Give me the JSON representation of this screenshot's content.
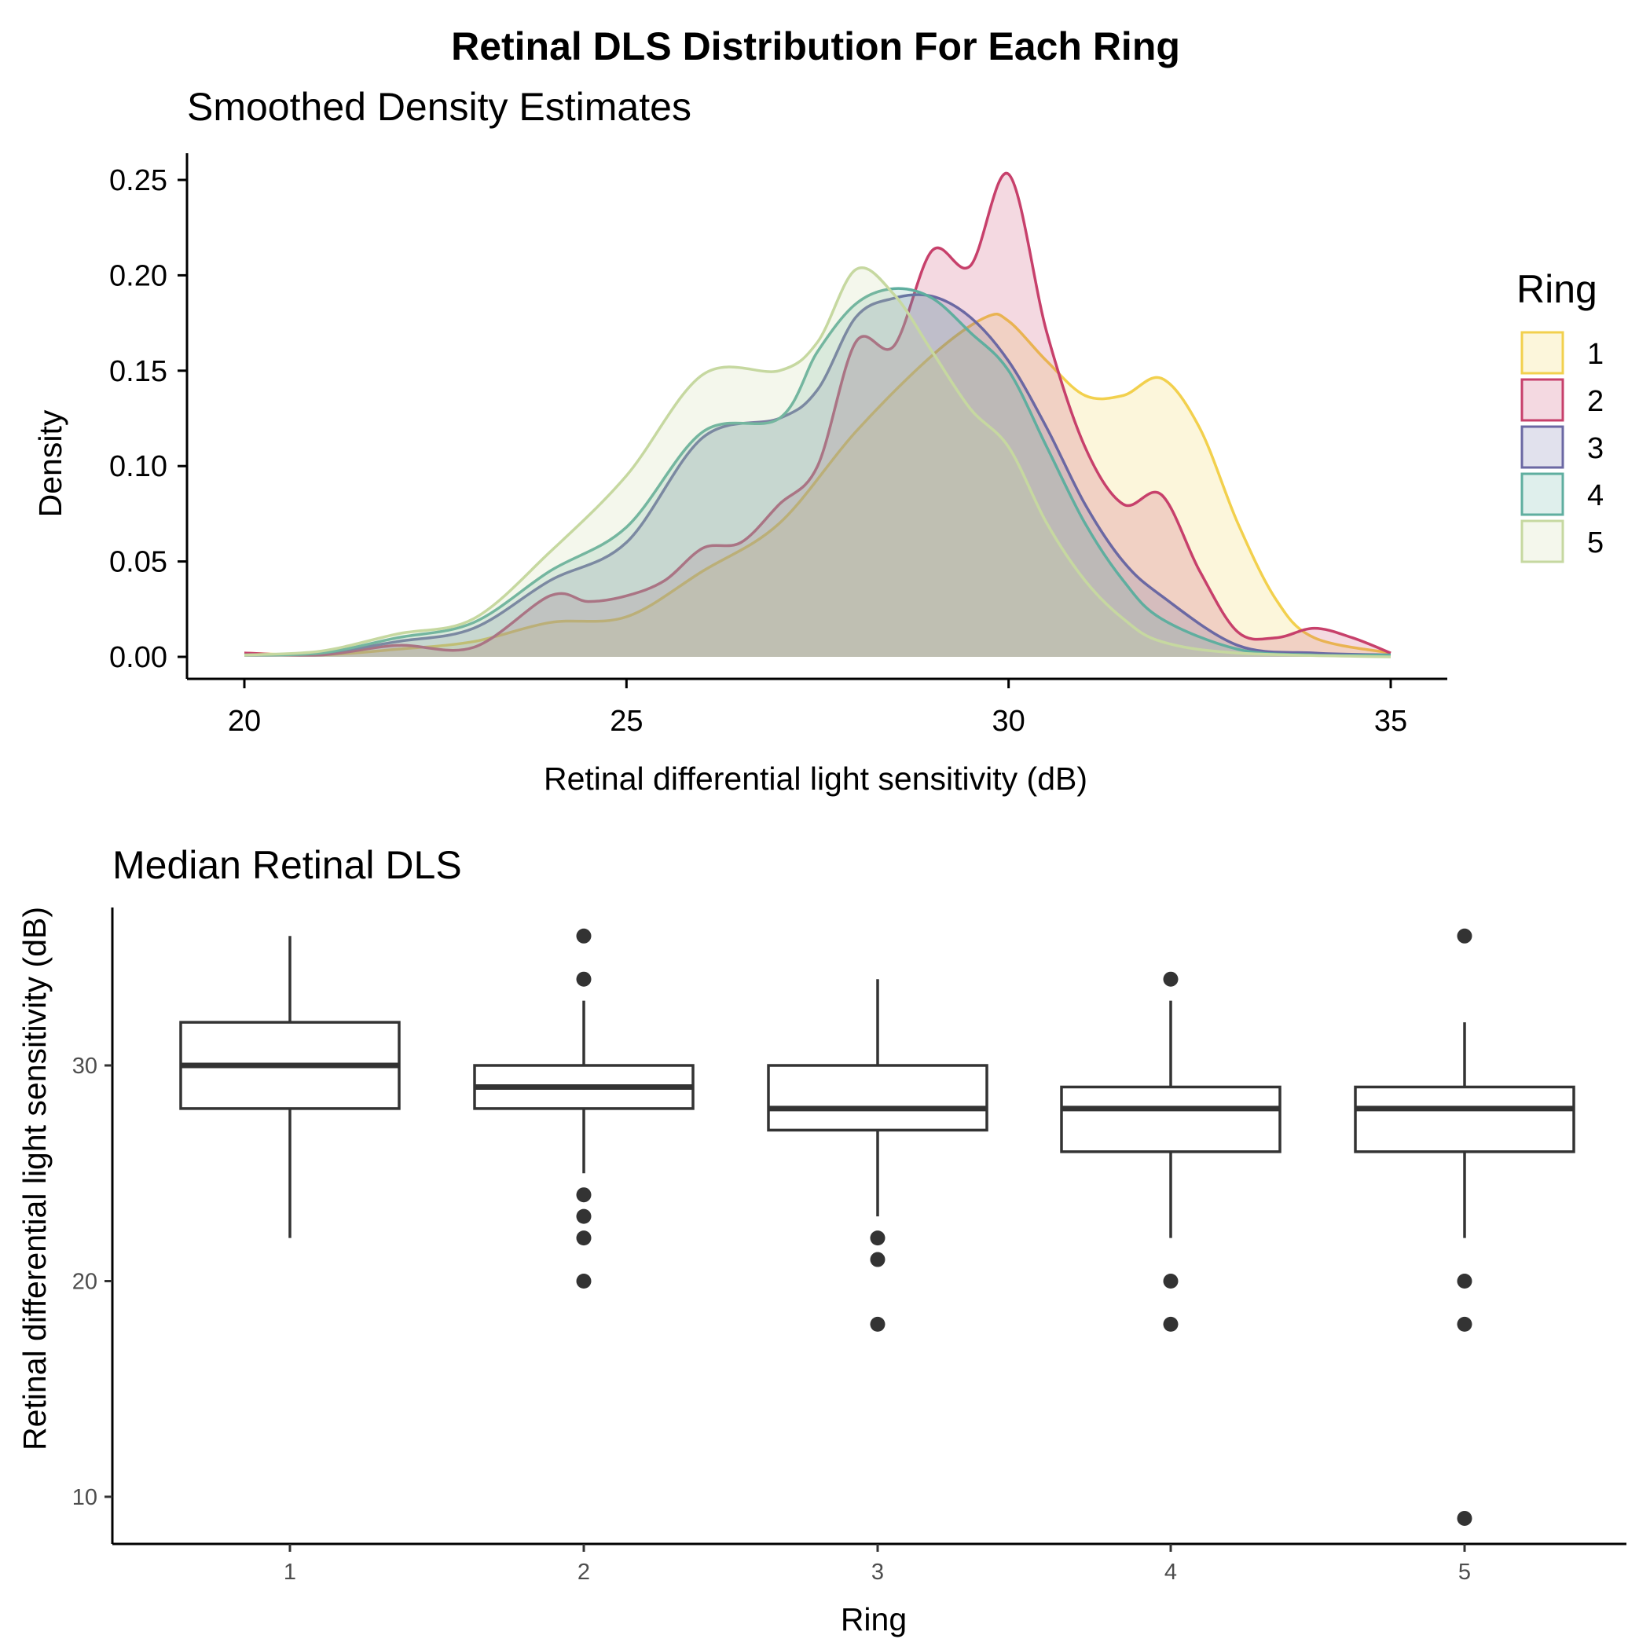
{
  "title": "Retinal DLS Distribution For Each Ring",
  "colors": {
    "ring1": "#F2D04D",
    "ring2": "#C7406B",
    "ring3": "#6B68A3",
    "ring4": "#5FAE9F",
    "ring5": "#C6D8A0",
    "box": "#333333"
  },
  "chart_data": [
    {
      "type": "area",
      "subtitle": "Smoothed Density Estimates",
      "xlabel": "Retinal differential light sensitivity (dB)",
      "ylabel": "Density",
      "xlim": [
        20,
        35
      ],
      "ylim": [
        0,
        0.26
      ],
      "xticks": [
        "20",
        "25",
        "30",
        "35"
      ],
      "yticks": [
        "0.00",
        "0.05",
        "0.10",
        "0.15",
        "0.20",
        "0.25"
      ],
      "grid": false,
      "legend": {
        "title": "Ring",
        "position": "right",
        "entries": [
          "1",
          "2",
          "3",
          "4",
          "5"
        ]
      },
      "series": [
        {
          "name": "1",
          "points": [
            [
              20,
              0.002
            ],
            [
              21,
              0.001
            ],
            [
              22,
              0.004
            ],
            [
              23,
              0.008
            ],
            [
              24,
              0.018
            ],
            [
              25,
              0.021
            ],
            [
              26,
              0.045
            ],
            [
              27,
              0.07
            ],
            [
              28,
              0.118
            ],
            [
              29,
              0.158
            ],
            [
              29.7,
              0.178
            ],
            [
              30,
              0.176
            ],
            [
              30.5,
              0.155
            ],
            [
              31,
              0.137
            ],
            [
              31.5,
              0.137
            ],
            [
              32,
              0.146
            ],
            [
              32.5,
              0.12
            ],
            [
              33,
              0.07
            ],
            [
              33.5,
              0.03
            ],
            [
              34,
              0.01
            ],
            [
              35,
              0.002
            ]
          ]
        },
        {
          "name": "2",
          "points": [
            [
              20,
              0.002
            ],
            [
              21,
              0.001
            ],
            [
              22,
              0.006
            ],
            [
              23,
              0.005
            ],
            [
              24,
              0.032
            ],
            [
              24.5,
              0.029
            ],
            [
              25,
              0.032
            ],
            [
              25.5,
              0.04
            ],
            [
              26,
              0.057
            ],
            [
              26.5,
              0.06
            ],
            [
              27,
              0.08
            ],
            [
              27.5,
              0.1
            ],
            [
              28,
              0.165
            ],
            [
              28.5,
              0.163
            ],
            [
              29,
              0.213
            ],
            [
              29.5,
              0.205
            ],
            [
              30,
              0.253
            ],
            [
              30.5,
              0.17
            ],
            [
              31,
              0.11
            ],
            [
              31.5,
              0.08
            ],
            [
              32,
              0.085
            ],
            [
              32.5,
              0.045
            ],
            [
              33,
              0.013
            ],
            [
              33.5,
              0.01
            ],
            [
              34,
              0.015
            ],
            [
              34.5,
              0.01
            ],
            [
              35,
              0.002
            ]
          ]
        },
        {
          "name": "3",
          "points": [
            [
              20,
              0.001
            ],
            [
              21,
              0.002
            ],
            [
              22,
              0.008
            ],
            [
              23,
              0.015
            ],
            [
              24,
              0.04
            ],
            [
              25,
              0.06
            ],
            [
              26,
              0.115
            ],
            [
              27,
              0.125
            ],
            [
              27.5,
              0.14
            ],
            [
              28,
              0.178
            ],
            [
              28.5,
              0.188
            ],
            [
              29,
              0.189
            ],
            [
              29.5,
              0.178
            ],
            [
              30,
              0.155
            ],
            [
              30.5,
              0.12
            ],
            [
              31,
              0.08
            ],
            [
              31.5,
              0.05
            ],
            [
              32,
              0.032
            ],
            [
              33,
              0.006
            ],
            [
              34,
              0.002
            ],
            [
              35,
              0.001
            ]
          ]
        },
        {
          "name": "4",
          "points": [
            [
              20,
              0.001
            ],
            [
              21,
              0.002
            ],
            [
              22,
              0.01
            ],
            [
              23,
              0.018
            ],
            [
              24,
              0.045
            ],
            [
              25,
              0.068
            ],
            [
              26,
              0.118
            ],
            [
              27,
              0.125
            ],
            [
              27.5,
              0.16
            ],
            [
              28,
              0.185
            ],
            [
              28.5,
              0.193
            ],
            [
              29,
              0.188
            ],
            [
              29.5,
              0.17
            ],
            [
              30,
              0.15
            ],
            [
              30.5,
              0.11
            ],
            [
              31,
              0.07
            ],
            [
              31.5,
              0.04
            ],
            [
              32,
              0.02
            ],
            [
              33,
              0.004
            ],
            [
              34,
              0.001
            ],
            [
              35,
              0.001
            ]
          ]
        },
        {
          "name": "5",
          "points": [
            [
              20,
              0.001
            ],
            [
              21,
              0.003
            ],
            [
              22,
              0.012
            ],
            [
              23,
              0.02
            ],
            [
              24,
              0.055
            ],
            [
              25,
              0.095
            ],
            [
              26,
              0.148
            ],
            [
              27,
              0.15
            ],
            [
              27.5,
              0.165
            ],
            [
              28,
              0.203
            ],
            [
              28.5,
              0.19
            ],
            [
              29,
              0.16
            ],
            [
              29.5,
              0.13
            ],
            [
              30,
              0.11
            ],
            [
              30.5,
              0.07
            ],
            [
              31,
              0.04
            ],
            [
              31.5,
              0.02
            ],
            [
              32,
              0.008
            ],
            [
              33,
              0.002
            ],
            [
              35,
              0.0
            ]
          ]
        }
      ]
    },
    {
      "type": "box",
      "subtitle": "Median Retinal DLS",
      "xlabel": "Ring",
      "ylabel": "Retinal differential light sensitivity (dB)",
      "ylim": [
        7.5,
        37.5
      ],
      "yticks": [
        "10",
        "20",
        "30"
      ],
      "categories": [
        "1",
        "2",
        "3",
        "4",
        "5"
      ],
      "grid": false,
      "boxes": [
        {
          "name": "1",
          "whisker_low": 22,
          "q1": 28,
          "median": 30,
          "q3": 32,
          "whisker_high": 36,
          "outliers": []
        },
        {
          "name": "2",
          "whisker_low": 25,
          "q1": 28,
          "median": 29,
          "q3": 30,
          "whisker_high": 33,
          "outliers": [
            36,
            34,
            24,
            23,
            22,
            20
          ]
        },
        {
          "name": "3",
          "whisker_low": 23,
          "q1": 27,
          "median": 28,
          "q3": 30,
          "whisker_high": 34,
          "outliers": [
            22,
            21,
            18
          ]
        },
        {
          "name": "4",
          "whisker_low": 22,
          "q1": 26,
          "median": 28,
          "q3": 29,
          "whisker_high": 33,
          "outliers": [
            34,
            20,
            18
          ]
        },
        {
          "name": "5",
          "whisker_low": 22,
          "q1": 26,
          "median": 28,
          "q3": 29,
          "whisker_high": 32,
          "outliers": [
            36,
            20,
            18,
            9
          ]
        }
      ]
    }
  ]
}
